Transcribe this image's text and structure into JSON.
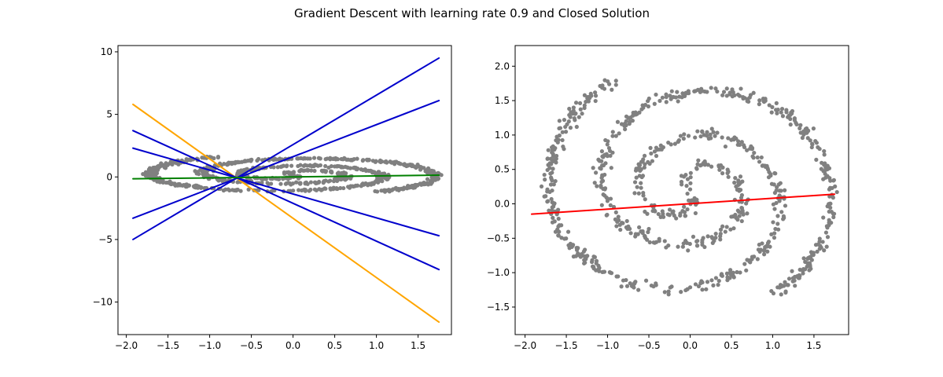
{
  "figure": {
    "title": "Gradient Descent with learning rate 0.9 and Closed Solution"
  },
  "chart_data": [
    {
      "type": "scatter",
      "description_free": true,
      "xlim": [
        -2.1,
        1.9
      ],
      "ylim": [
        -12.6,
        10.5
      ],
      "xticks": [
        -2.0,
        -1.5,
        -1.0,
        -0.5,
        0.0,
        0.5,
        1.0,
        1.5
      ],
      "xtick_labels": [
        "−2.0",
        "−1.5",
        "−1.0",
        "−0.5",
        "0.0",
        "0.5",
        "1.0",
        "1.5"
      ],
      "yticks": [
        -10,
        -5,
        0,
        5,
        10
      ],
      "ytick_labels": [
        "−10",
        "−5",
        "0",
        "5",
        "10"
      ],
      "grid": false,
      "points_color": "#808080",
      "point_cloud": {
        "shape": "two interleaved spirals flattened to the y range [-1.6, 2.1]",
        "x_range": [
          -1.9,
          1.75
        ],
        "y_range": [
          -1.65,
          2.1
        ]
      },
      "lines": [
        {
          "color": "#ffa500",
          "x": [
            -1.92,
            1.75
          ],
          "y": [
            5.8,
            -11.6
          ]
        },
        {
          "color": "#0000cc",
          "x": [
            -1.92,
            1.75
          ],
          "y": [
            -5.0,
            9.5
          ]
        },
        {
          "color": "#0000cc",
          "x": [
            -1.92,
            1.75
          ],
          "y": [
            -3.3,
            6.1
          ]
        },
        {
          "color": "#0000cc",
          "x": [
            -1.92,
            1.75
          ],
          "y": [
            3.7,
            -7.4
          ]
        },
        {
          "color": "#0000cc",
          "x": [
            -1.92,
            1.75
          ],
          "y": [
            2.3,
            -4.7
          ]
        },
        {
          "color": "#008000",
          "x": [
            -1.92,
            1.75
          ],
          "y": [
            -0.15,
            0.14
          ]
        }
      ]
    },
    {
      "type": "scatter",
      "xlim": [
        -2.12,
        1.92
      ],
      "ylim": [
        -1.9,
        2.3
      ],
      "xticks": [
        -2.0,
        -1.5,
        -1.0,
        -0.5,
        0.0,
        0.5,
        1.0,
        1.5
      ],
      "xtick_labels": [
        "−2.0",
        "−1.5",
        "−1.0",
        "−0.5",
        "0.0",
        "0.5",
        "1.0",
        "1.5"
      ],
      "yticks": [
        -1.5,
        -1.0,
        -0.5,
        0.0,
        0.5,
        1.0,
        1.5,
        2.0
      ],
      "ytick_labels": [
        "−1.5",
        "−1.0",
        "−0.5",
        "0.0",
        "0.5",
        "1.0",
        "1.5",
        "2.0"
      ],
      "grid": false,
      "points_color": "#808080",
      "point_cloud": {
        "shape": "two interleaved spirals",
        "x_range": [
          -1.9,
          1.75
        ],
        "y_range": [
          -1.7,
          2.1
        ]
      },
      "lines": [
        {
          "color": "#ff0000",
          "x": [
            -1.92,
            1.75
          ],
          "y": [
            -0.15,
            0.14
          ]
        }
      ]
    }
  ]
}
